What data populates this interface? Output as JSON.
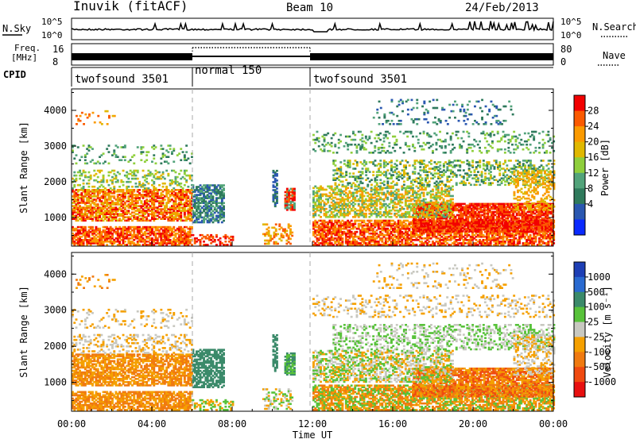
{
  "header": {
    "station": "Inuvik (fitACF)",
    "beam": "Beam 10",
    "date": "24/Feb/2013"
  },
  "panels_top": {
    "nsky_label": "N.Sky",
    "nsky_ticks": [
      "10^5",
      "10^0"
    ],
    "nsearch_ticks": [
      "10^5",
      "10^0"
    ],
    "nsearch_label": "N.Search",
    "freq_label_line1": "Freq.",
    "freq_label_line2": "[MHz]",
    "freq_ticks": [
      "16",
      "8"
    ],
    "nave_ticks": [
      "80",
      "0"
    ],
    "nave_label": "Nave",
    "cpid_label": "CPID",
    "cpid_segments": [
      {
        "label": "twofsound 3501",
        "start": 0,
        "end": 6
      },
      {
        "label": "normal 150",
        "start": 6,
        "end": 12
      },
      {
        "label": "twofsound 3501",
        "start": 12,
        "end": 24
      }
    ]
  },
  "power_panel": {
    "ylabel": "Slant Range [km]",
    "yticks": [
      "1000",
      "2000",
      "3000",
      "4000"
    ],
    "colorbar_label": "Power [dB]",
    "colorbar_ticks": [
      "28",
      "24",
      "20",
      "16",
      "12",
      "8",
      "4"
    ],
    "colors": [
      "#f20000",
      "#fb5a00",
      "#fb9a00",
      "#e0b800",
      "#8fcf3c",
      "#52a37a",
      "#2f7a5c",
      "#2a57b0",
      "#0a2aff"
    ]
  },
  "velocity_panel": {
    "ylabel": "Slant Range [km]",
    "yticks": [
      "1000",
      "2000",
      "3000",
      "4000"
    ],
    "colorbar_label": "Velocity [m s⁻¹]",
    "colorbar_ticks": [
      "1000",
      "500",
      "100",
      "25",
      "-25",
      "-100",
      "-500",
      "-1000"
    ],
    "colors": [
      "#1e3fb5",
      "#2a6ad0",
      "#3b8a6a",
      "#58c23a",
      "#c8c8c0",
      "#f5a000",
      "#f07a10",
      "#f04a10",
      "#e81010"
    ]
  },
  "xaxis": {
    "ticks": [
      "00:00",
      "04:00",
      "08:00",
      "12:00",
      "16:00",
      "20:00",
      "00:00"
    ],
    "label": "Time UT"
  },
  "chart_data": {
    "type": "heatmap",
    "title": "Inuvik (fitACF) Beam 10 24/Feb/2013",
    "xlabel": "Time UT",
    "ylabel": "Slant Range [km]",
    "xlim": [
      0,
      24
    ],
    "ylim": [
      200,
      4600
    ],
    "power_scale_db": [
      0,
      32
    ],
    "velocity_scale_ms": [
      -1000,
      1000
    ],
    "scatter_regions": [
      {
        "name": "E/F near range",
        "t": [
          0,
          24
        ],
        "r": [
          200,
          900
        ]
      },
      {
        "name": "F band morning",
        "t": [
          0,
          6
        ],
        "r": [
          900,
          1900
        ]
      },
      {
        "name": "F band late",
        "t": [
          12,
          24
        ],
        "r": [
          1000,
          2600
        ]
      },
      {
        "name": "Far range scatter",
        "t": [
          13,
          24
        ],
        "r": [
          2800,
          4300
        ]
      },
      {
        "name": "Midday patches",
        "t": [
          9.5,
          11
        ],
        "r": [
          1200,
          2400
        ]
      }
    ]
  }
}
